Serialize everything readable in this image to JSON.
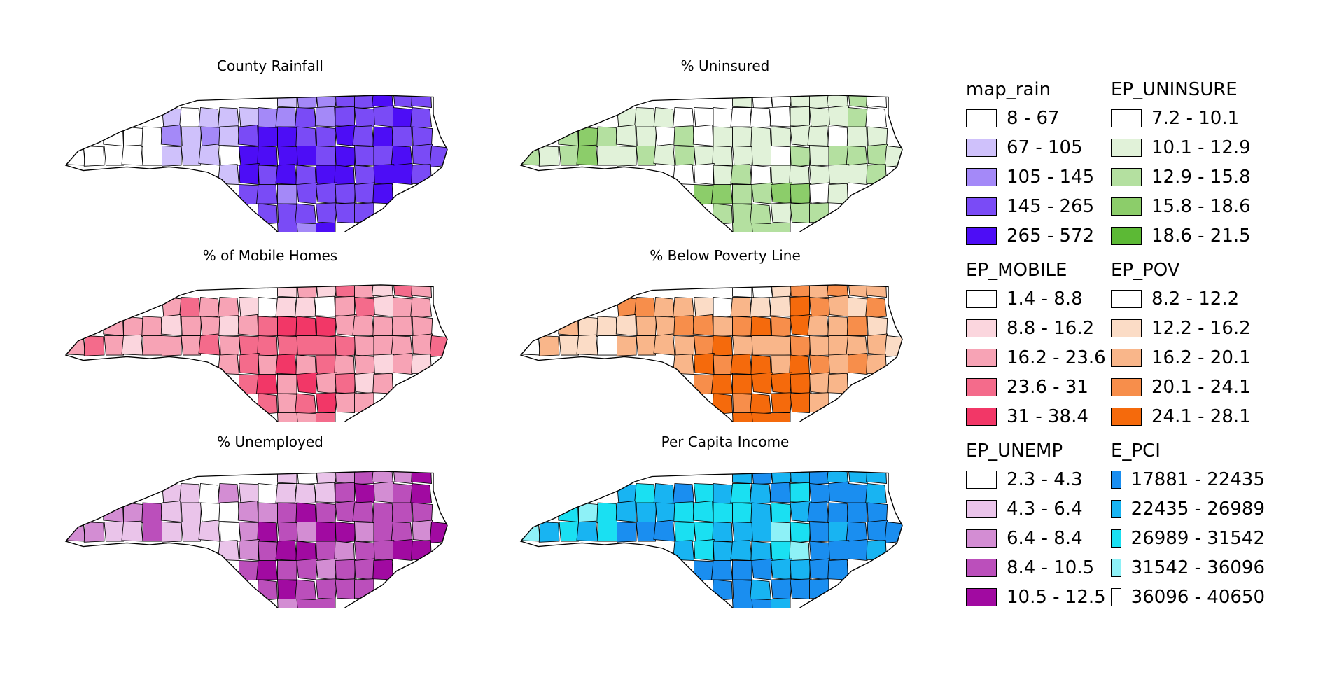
{
  "maps": [
    {
      "title": "County Rainfall",
      "colors": [
        "#ffffff",
        "#cfc1fb",
        "#a489f8",
        "#7a4bf6",
        "#4d0df6"
      ],
      "bands": [
        0,
        1,
        2,
        3,
        3,
        4
      ]
    },
    {
      "title": "% Uninsured",
      "colors": [
        "#ffffff",
        "#e1f2d9",
        "#b4e0a0",
        "#8ccd6a",
        "#5cb935"
      ],
      "bands": [
        2,
        1,
        0,
        1,
        2,
        1
      ]
    },
    {
      "title": "% of Mobile Homes",
      "colors": [
        "#ffffff",
        "#fbd6de",
        "#f7a3b5",
        "#f46b8b",
        "#f23767"
      ],
      "bands": [
        2,
        2,
        1,
        2,
        3,
        3
      ]
    },
    {
      "title": "% Below Poverty Line",
      "colors": [
        "#ffffff",
        "#fbdcc6",
        "#f9b68a",
        "#f78e4b",
        "#f56a0c"
      ],
      "bands": [
        1,
        2,
        1,
        2,
        4,
        3
      ]
    },
    {
      "title": "% Unemployed",
      "colors": [
        "#ffffff",
        "#eac4ea",
        "#d38dd3",
        "#bb4fbb",
        "#a10aa1"
      ],
      "bands": [
        2,
        1,
        1,
        3,
        3,
        3
      ]
    },
    {
      "title": "Per Capita Income",
      "colors": [
        "#1a8ef0",
        "#18b4f2",
        "#1ae0f2",
        "#8ef1f7",
        "#ffffff"
      ],
      "bands": [
        2,
        1,
        1,
        0,
        0,
        2
      ]
    }
  ],
  "legend": [
    {
      "title": "map_rain",
      "items": [
        "8 - 67",
        "67 - 105",
        "105 - 145",
        "145 - 265",
        "265 - 572"
      ],
      "colors": [
        "#ffffff",
        "#cfc1fb",
        "#a489f8",
        "#7a4bf6",
        "#4d0df6"
      ]
    },
    {
      "title": "EP_UNINSURE",
      "items": [
        "7.2 - 10.1",
        "10.1 - 12.9",
        "12.9 - 15.8",
        "15.8 - 18.6",
        "18.6 - 21.5"
      ],
      "colors": [
        "#ffffff",
        "#e1f2d9",
        "#b4e0a0",
        "#8ccd6a",
        "#5cb935"
      ]
    },
    {
      "title": "EP_MOBILE",
      "items": [
        "1.4 - 8.8",
        "8.8 - 16.2",
        "16.2 - 23.6",
        "23.6 - 31",
        "31 - 38.4"
      ],
      "colors": [
        "#ffffff",
        "#fbd6de",
        "#f7a3b5",
        "#f46b8b",
        "#f23767"
      ]
    },
    {
      "title": "EP_POV",
      "items": [
        "8.2 - 12.2",
        "12.2 - 16.2",
        "16.2 - 20.1",
        "20.1 - 24.1",
        "24.1 - 28.1"
      ],
      "colors": [
        "#ffffff",
        "#fbdcc6",
        "#f9b68a",
        "#f78e4b",
        "#f56a0c"
      ]
    },
    {
      "title": "EP_UNEMP",
      "items": [
        "2.3 - 4.3",
        "4.3 - 6.4",
        "6.4 - 8.4",
        "8.4 - 10.5",
        "10.5 - 12.5"
      ],
      "colors": [
        "#ffffff",
        "#eac4ea",
        "#d38dd3",
        "#bb4fbb",
        "#a10aa1"
      ]
    },
    {
      "title": "E_PCI",
      "items": [
        "17881 - 22435",
        "22435 - 26989",
        "26989 - 31542",
        "31542 - 36096",
        "36096 - 40650"
      ],
      "colors": [
        "#1a8ef0",
        "#18b4f2",
        "#1ae0f2",
        "#8ef1f7",
        "#ffffff"
      ]
    }
  ]
}
